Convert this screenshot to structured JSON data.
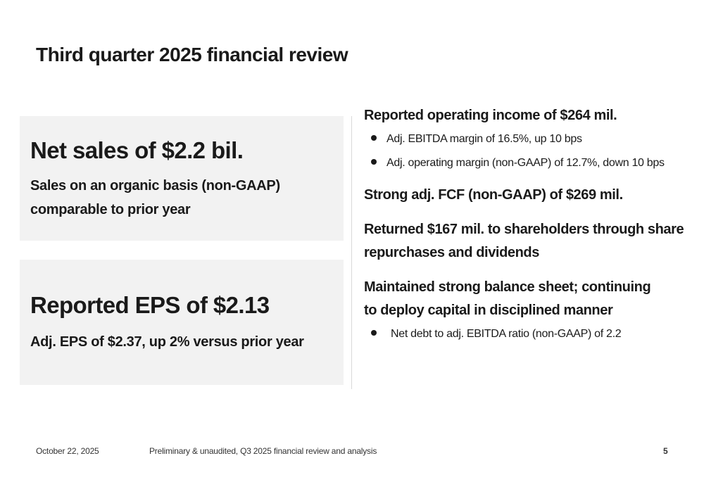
{
  "slide": {
    "title": "Third quarter 2025 financial review"
  },
  "panels": [
    {
      "headline": "Net sales of $2.2 bil.",
      "sub_lines": [
        "Sales on an organic basis (non-GAAP)",
        "comparable to prior year"
      ]
    },
    {
      "headline": "Reported EPS of $2.13",
      "sub_lines": [
        "Adj. EPS of $2.37, up 2% versus prior year"
      ]
    }
  ],
  "points": [
    {
      "heading_lines": [
        "Reported operating income of $264 mil."
      ],
      "bullets": [
        "Adj. EBITDA margin of 16.5%, up 10 bps",
        "Adj. operating margin (non-GAAP) of 12.7%, down 10 bps"
      ]
    },
    {
      "heading_lines": [
        "Strong adj. FCF (non-GAAP) of $269 mil."
      ],
      "bullets": []
    },
    {
      "heading_lines": [
        "Returned $167 mil. to shareholders through share",
        "repurchases and dividends"
      ],
      "bullets": []
    },
    {
      "heading_lines": [
        "Maintained strong balance sheet; continuing",
        "to deploy capital in disciplined manner"
      ],
      "bullets": [
        "Net debt to adj. EBITDA ratio (non-GAAP) of 2.2"
      ]
    }
  ],
  "footer": {
    "date": "October 22, 2025",
    "note": "Preliminary & unaudited, Q3 2025 financial review and analysis",
    "page": "5"
  }
}
